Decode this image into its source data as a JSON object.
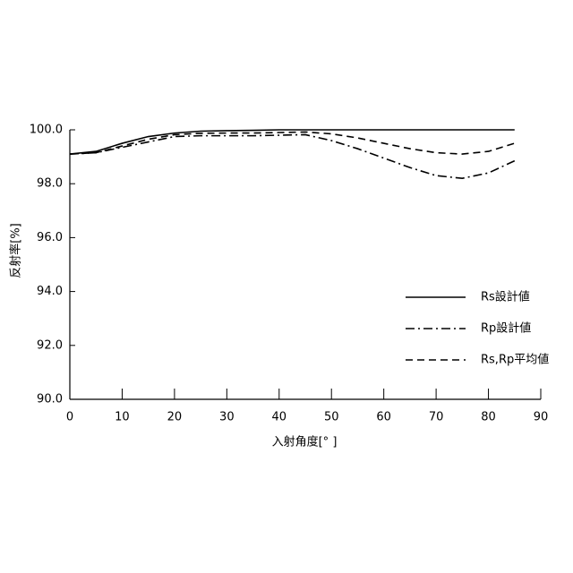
{
  "chart_data": {
    "type": "line",
    "x_label": "入射角度[° ]",
    "y_label": "反射率[%]",
    "x": [
      0,
      5,
      10,
      15,
      20,
      25,
      30,
      35,
      40,
      45,
      50,
      55,
      60,
      65,
      70,
      75,
      80,
      85
    ],
    "series": [
      {
        "name": "Rs設計値",
        "color": "#000000",
        "dash": "solid",
        "values": [
          99.1,
          99.2,
          99.5,
          99.75,
          99.88,
          99.95,
          99.97,
          99.98,
          100,
          100,
          100,
          100,
          100,
          100,
          100,
          100,
          100,
          100
        ]
      },
      {
        "name": "Rp設計値",
        "color": "#000000",
        "dash": "dashdot",
        "values": [
          99.1,
          99.15,
          99.35,
          99.55,
          99.75,
          99.78,
          99.78,
          99.78,
          99.8,
          99.82,
          99.6,
          99.3,
          98.95,
          98.6,
          98.3,
          98.2,
          98.4,
          98.85
        ]
      },
      {
        "name": "Rs,Rp平均値",
        "color": "#000000",
        "dash": "dashed",
        "values": [
          99.1,
          99.15,
          99.4,
          99.65,
          99.82,
          99.87,
          99.88,
          99.88,
          99.9,
          99.92,
          99.85,
          99.7,
          99.5,
          99.3,
          99.15,
          99.1,
          99.2,
          99.5
        ]
      }
    ],
    "xlim": [
      0,
      90
    ],
    "xticks": [
      0,
      10,
      20,
      30,
      40,
      50,
      60,
      70,
      80,
      90
    ],
    "ylim": [
      90,
      100
    ],
    "yticks": [
      {
        "value": 90,
        "label": "90.0"
      },
      {
        "value": 92,
        "label": "92.0"
      },
      {
        "value": 94,
        "label": "94.0"
      },
      {
        "value": 96,
        "label": "96.0"
      },
      {
        "value": 98,
        "label": "98.0"
      },
      {
        "value": 100,
        "label": "100.0"
      }
    ],
    "legend": "lower right"
  }
}
